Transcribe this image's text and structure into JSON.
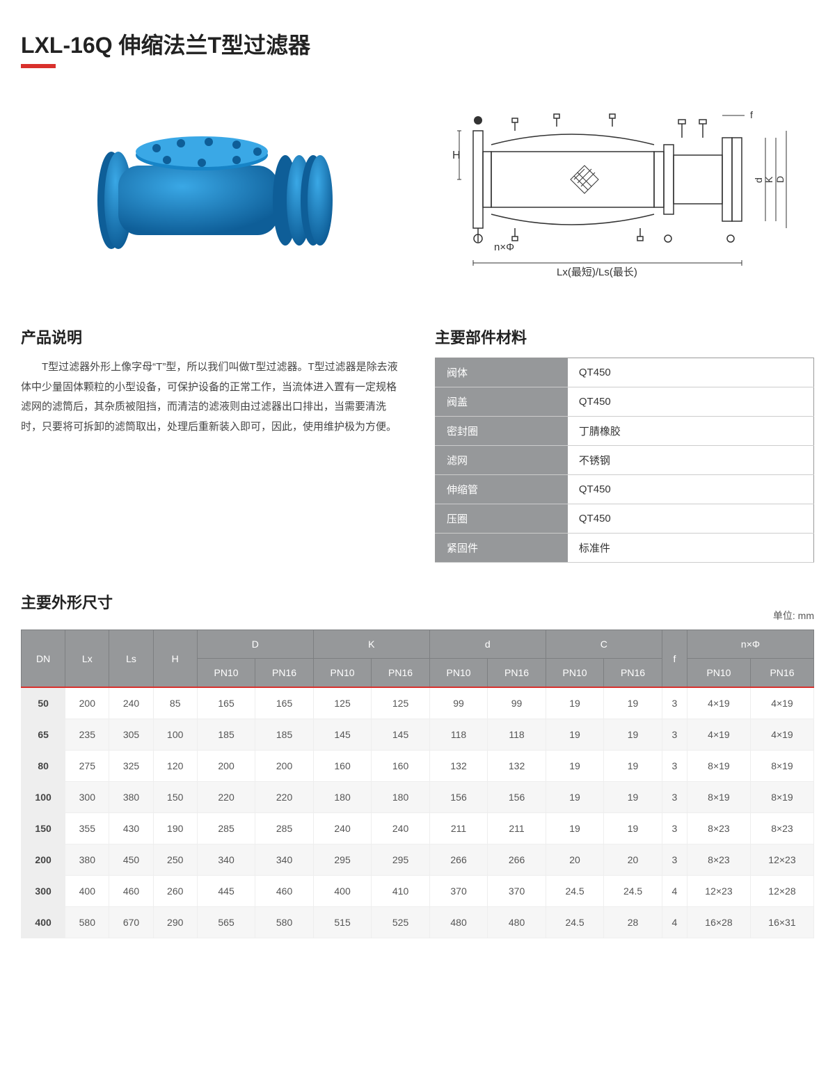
{
  "title": "LXL-16Q 伸缩法兰T型过滤器",
  "colors": {
    "accent": "#d9302c",
    "product_blue": "#1784c7",
    "header_grey": "#96989a",
    "text": "#333333"
  },
  "diagram_labels": {
    "H": "H",
    "nPhi": "n×Φ",
    "L": "Lx(最短)/Ls(最长)",
    "f": "f",
    "d": "d",
    "K": "K",
    "D": "D"
  },
  "desc": {
    "heading": "产品说明",
    "text": "T型过滤器外形上像字母“T”型，所以我们叫做T型过滤器。T型过滤器是除去液体中少量固体颗粒的小型设备，可保护设备的正常工作，当流体进入置有一定规格滤网的滤筒后，其杂质被阻挡，而清洁的滤液则由过滤器出口排出，当需要清洗时，只要将可拆卸的滤筒取出，处理后重新装入即可，因此，使用维护极为方便。"
  },
  "materials": {
    "heading": "主要部件材料",
    "rows": [
      {
        "label": "阀体",
        "value": "QT450"
      },
      {
        "label": "阀盖",
        "value": "QT450"
      },
      {
        "label": "密封圈",
        "value": "丁腈橡胶"
      },
      {
        "label": "滤网",
        "value": "不锈钢"
      },
      {
        "label": "伸缩管",
        "value": "QT450"
      },
      {
        "label": "压圈",
        "value": "QT450"
      },
      {
        "label": "紧固件",
        "value": "标准件"
      }
    ]
  },
  "dims": {
    "heading": "主要外形尺寸",
    "unit": "单位: mm",
    "top_headers": [
      "DN",
      "Lx",
      "Ls",
      "H",
      "D",
      "K",
      "d",
      "C",
      "f",
      "n×Φ"
    ],
    "sub_headers": [
      "PN10",
      "PN16",
      "PN10",
      "PN16",
      "PN10",
      "PN16",
      "PN10",
      "PN16",
      "PN10",
      "PN16"
    ],
    "rows": [
      [
        "50",
        "200",
        "240",
        "85",
        "165",
        "165",
        "125",
        "125",
        "99",
        "99",
        "19",
        "19",
        "3",
        "4×19",
        "4×19"
      ],
      [
        "65",
        "235",
        "305",
        "100",
        "185",
        "185",
        "145",
        "145",
        "118",
        "118",
        "19",
        "19",
        "3",
        "4×19",
        "4×19"
      ],
      [
        "80",
        "275",
        "325",
        "120",
        "200",
        "200",
        "160",
        "160",
        "132",
        "132",
        "19",
        "19",
        "3",
        "8×19",
        "8×19"
      ],
      [
        "100",
        "300",
        "380",
        "150",
        "220",
        "220",
        "180",
        "180",
        "156",
        "156",
        "19",
        "19",
        "3",
        "8×19",
        "8×19"
      ],
      [
        "150",
        "355",
        "430",
        "190",
        "285",
        "285",
        "240",
        "240",
        "211",
        "211",
        "19",
        "19",
        "3",
        "8×23",
        "8×23"
      ],
      [
        "200",
        "380",
        "450",
        "250",
        "340",
        "340",
        "295",
        "295",
        "266",
        "266",
        "20",
        "20",
        "3",
        "8×23",
        "12×23"
      ],
      [
        "300",
        "400",
        "460",
        "260",
        "445",
        "460",
        "400",
        "410",
        "370",
        "370",
        "24.5",
        "24.5",
        "4",
        "12×23",
        "12×28"
      ],
      [
        "400",
        "580",
        "670",
        "290",
        "565",
        "580",
        "515",
        "525",
        "480",
        "480",
        "24.5",
        "28",
        "4",
        "16×28",
        "16×31"
      ]
    ]
  }
}
